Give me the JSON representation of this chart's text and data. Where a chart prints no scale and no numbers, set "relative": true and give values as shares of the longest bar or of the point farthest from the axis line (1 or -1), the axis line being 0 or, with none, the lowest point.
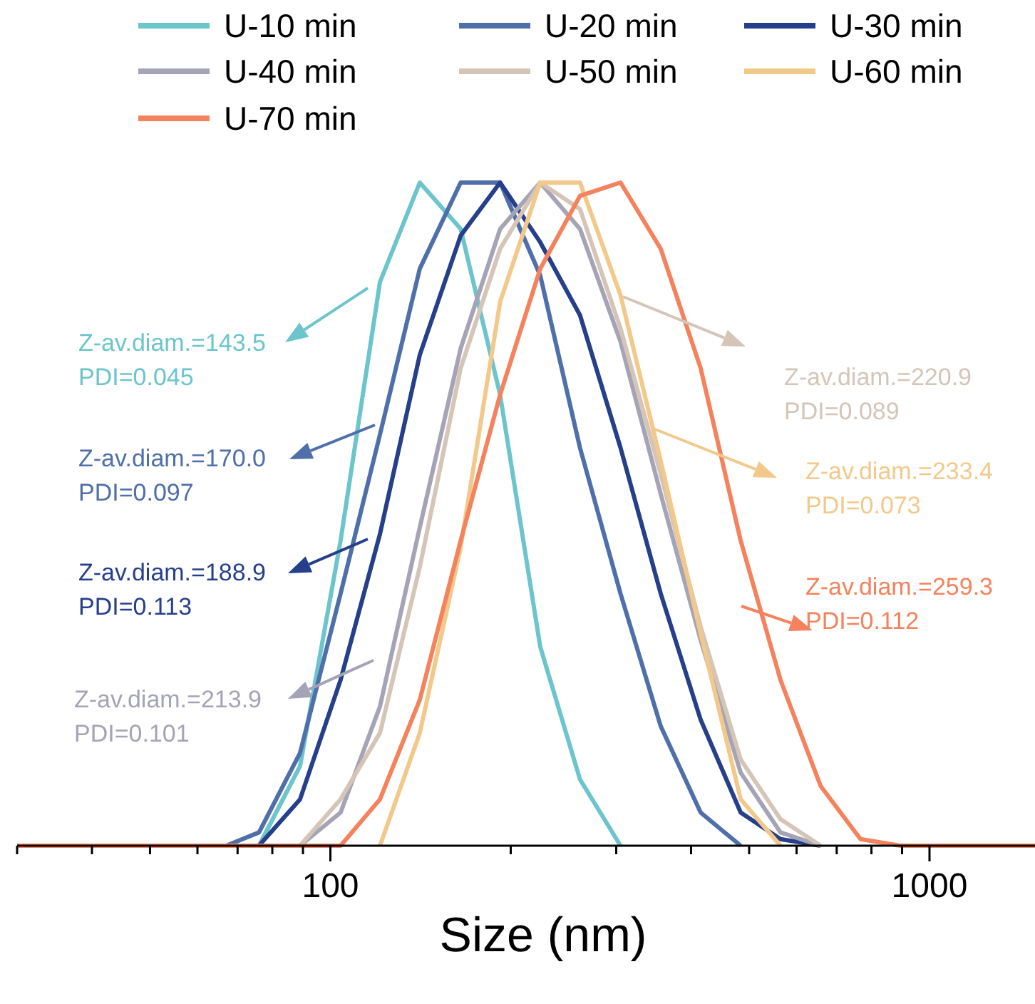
{
  "chart_data": {
    "type": "line",
    "relative": true,
    "log": "x",
    "xlabel": "Size (nm)",
    "xlim": [
      30,
      1500
    ],
    "xticks": [
      {
        "value": 30,
        "label": null
      },
      {
        "value": 40,
        "label": null
      },
      {
        "value": 50,
        "label": null
      },
      {
        "value": 60,
        "label": null
      },
      {
        "value": 70,
        "label": null
      },
      {
        "value": 80,
        "label": null
      },
      {
        "value": 90,
        "label": null
      },
      100,
      {
        "value": 200,
        "label": null
      },
      {
        "value": 300,
        "label": null
      },
      {
        "value": 400,
        "label": null
      },
      {
        "value": 500,
        "label": null
      },
      {
        "value": 600,
        "label": null
      },
      {
        "value": 700,
        "label": null
      },
      {
        "value": 800,
        "label": null
      },
      {
        "value": 900,
        "label": null
      },
      1000
    ],
    "tick_labels": "x",
    "legend": "top",
    "marker": "none",
    "line_style": "solid",
    "x": [
      30,
      67,
      76,
      89,
      104,
      121,
      141,
      165,
      192,
      224,
      261,
      305,
      356,
      415,
      484,
      564,
      658,
      767,
      894,
      1500
    ],
    "series": [
      {
        "name": "U-10 min",
        "color": "#6cc5cc",
        "values": [
          null,
          null,
          0,
          0.12,
          0.46,
          0.85,
          1,
          0.93,
          0.68,
          0.3,
          0.1,
          0,
          null,
          null,
          null,
          null,
          null,
          null,
          null,
          null
        ]
      },
      {
        "name": "U-20 min",
        "color": "#4f6fab",
        "values": [
          null,
          0,
          0.02,
          0.14,
          0.38,
          0.62,
          0.87,
          1,
          1,
          0.86,
          0.6,
          0.38,
          0.18,
          0.05,
          0,
          null,
          null,
          null,
          null,
          null
        ]
      },
      {
        "name": "U-30 min",
        "color": "#263f8a",
        "values": [
          null,
          null,
          0,
          0.07,
          0.25,
          0.47,
          0.74,
          0.92,
          1,
          0.91,
          0.8,
          0.6,
          0.38,
          0.19,
          0.05,
          0.01,
          0,
          null,
          null,
          null
        ]
      },
      {
        "name": "U-40 min",
        "color": "#a4a4b6",
        "values": [
          null,
          null,
          null,
          0,
          0.05,
          0.21,
          0.48,
          0.75,
          0.93,
          1,
          0.93,
          0.76,
          0.53,
          0.31,
          0.11,
          0.02,
          0,
          null,
          null,
          null
        ]
      },
      {
        "name": "U-50 min",
        "color": "#d5c5b7",
        "values": [
          null,
          null,
          null,
          0,
          0.07,
          0.17,
          0.42,
          0.72,
          0.9,
          1,
          0.96,
          0.78,
          0.56,
          0.33,
          0.13,
          0.04,
          0,
          null,
          null,
          null
        ]
      },
      {
        "name": "U-60 min",
        "color": "#f2c98a",
        "values": [
          null,
          null,
          null,
          null,
          null,
          0,
          0.17,
          0.45,
          0.82,
          1,
          1,
          0.83,
          0.58,
          0.32,
          0.07,
          0,
          null,
          null,
          null,
          null
        ]
      },
      {
        "name": "U-70 min",
        "color": "#f4825c",
        "values": [
          0,
          0,
          0,
          0,
          0,
          0.07,
          0.22,
          0.46,
          0.68,
          0.87,
          0.98,
          1,
          0.9,
          0.72,
          0.46,
          0.25,
          0.09,
          0.01,
          0,
          0
        ]
      }
    ],
    "annotations": [
      "Z-av.diam.=143.5\nPDI=0.045",
      "Z-av.diam.=170.0\nPDI=0.097",
      "Z-av.diam.=188.9\nPDI=0.113",
      "Z-av.diam.=213.9\nPDI=0.101",
      "Z-av.diam.=220.9\nPDI=0.089",
      "Z-av.diam.=233.4\nPDI=0.073",
      "Z-av.diam.=259.3\nPDI=0.112"
    ]
  }
}
